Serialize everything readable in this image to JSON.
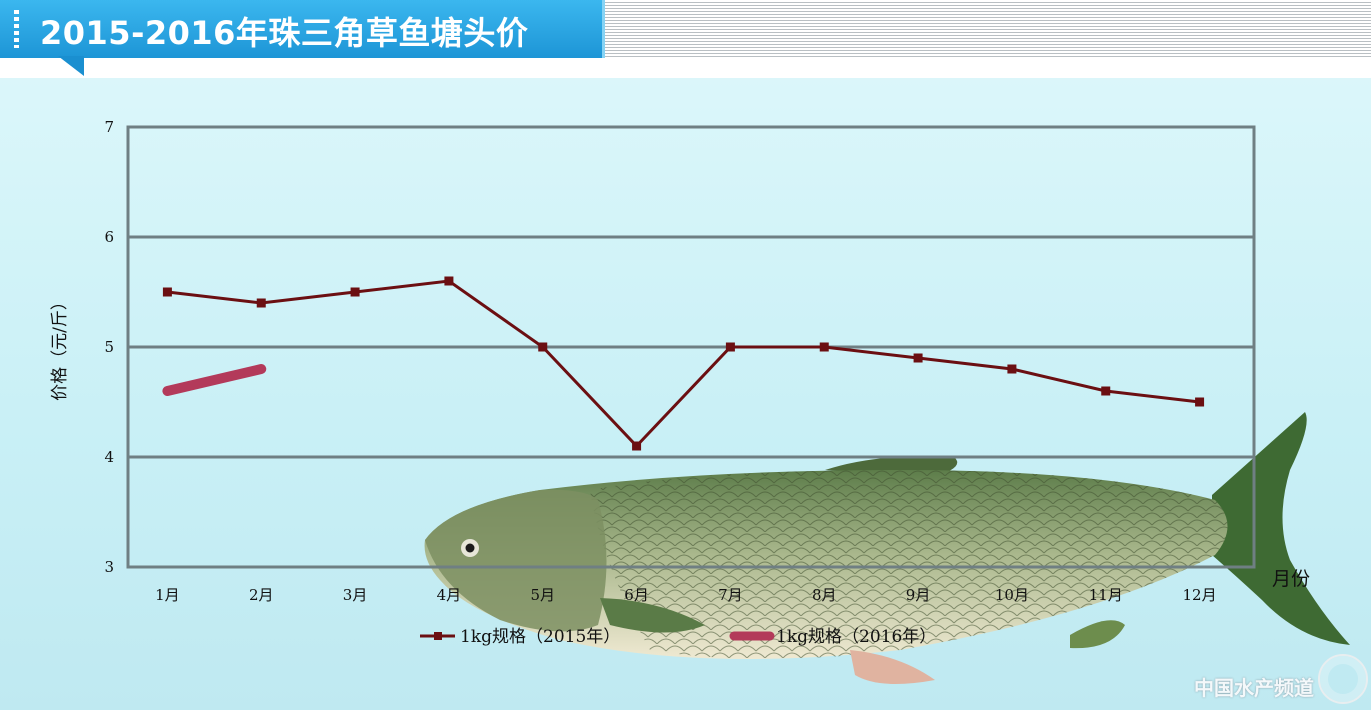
{
  "header": {
    "title": "2015-2016年珠三角草鱼塘头价"
  },
  "watermark": "中国水产频道",
  "colors": {
    "series_2015": "#6b0f12",
    "series_2016": "#b33a5a",
    "banner": "#2aa6e6"
  },
  "chart_data": {
    "type": "line",
    "title": "2015-2016年珠三角草鱼塘头价",
    "xlabel": "月份",
    "ylabel": "价格（元/斤）",
    "ylim": [
      3,
      7
    ],
    "yticks": [
      3,
      4,
      5,
      6,
      7
    ],
    "categories": [
      "1月",
      "2月",
      "3月",
      "4月",
      "5月",
      "6月",
      "7月",
      "8月",
      "9月",
      "10月",
      "11月",
      "12月"
    ],
    "grid": true,
    "legend_position": "bottom",
    "series": [
      {
        "name": "1kg规格（2015年）",
        "values": [
          5.5,
          5.4,
          5.5,
          5.6,
          5.0,
          4.1,
          5.0,
          5.0,
          4.9,
          4.8,
          4.6,
          4.5
        ],
        "color": "#6b0f12",
        "marker": "square"
      },
      {
        "name": "1kg规格（2016年）",
        "values": [
          4.6,
          4.8,
          null,
          null,
          null,
          null,
          null,
          null,
          null,
          null,
          null,
          null
        ],
        "color": "#b33a5a",
        "marker": "none"
      }
    ]
  }
}
